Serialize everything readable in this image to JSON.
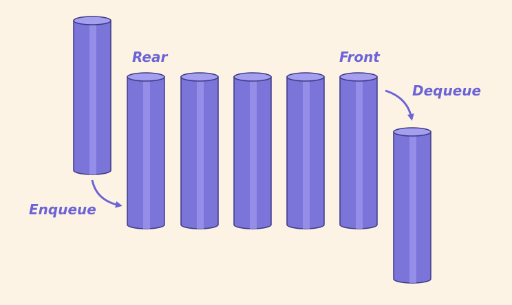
{
  "labels": {
    "rear": "Rear",
    "front": "Front",
    "enqueue": "Enqueue",
    "dequeue": "Dequeue"
  },
  "queue": {
    "items_in_queue": 5,
    "incoming_items": 1,
    "outgoing_items": 1
  },
  "colors": {
    "background": "#fdf3e4",
    "cylinder_body": "#7b74d9",
    "cylinder_top": "#a59ff0",
    "cylinder_highlight": "#9c95ec",
    "cylinder_outline": "#3c3a86",
    "label_text": "#6b63d6",
    "arrow": "#6b63d6"
  }
}
